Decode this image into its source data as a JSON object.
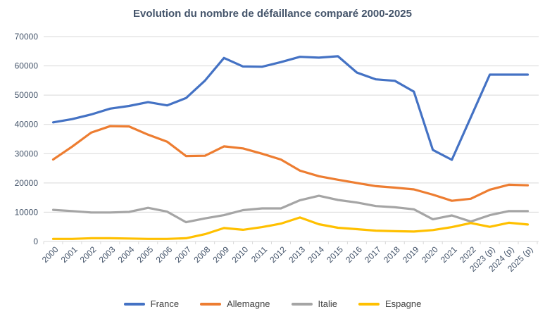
{
  "title": "Evolution du nombre de défaillance comparé 2000-2025",
  "colors": {
    "title_text": "#44546A",
    "axis_text": "#44546A",
    "gridline": "#D9D9D9",
    "legend_text": "#404040"
  },
  "chart_data": {
    "type": "line",
    "title": "Evolution du nombre de défaillance comparé 2000-2025",
    "xlabel": "",
    "ylabel": "",
    "ylim": [
      0,
      70000
    ],
    "y_ticks": [
      0,
      10000,
      20000,
      30000,
      40000,
      50000,
      60000,
      70000
    ],
    "grid": "horizontal",
    "legend_position": "bottom",
    "categories": [
      "2000",
      "2001",
      "2002",
      "2003",
      "2004",
      "2005",
      "2006",
      "2007",
      "2008",
      "2009",
      "2010",
      "2011",
      "2012",
      "2013",
      "2014",
      "2015",
      "2016",
      "2017",
      "2018",
      "2019",
      "2020",
      "2021",
      "2022",
      "2023 (p)",
      "2024 (p)",
      "2025 (p)"
    ],
    "series": [
      {
        "name": "France",
        "color": "#4472C4",
        "values": [
          40700,
          41800,
          43400,
          45400,
          46300,
          47600,
          46500,
          49000,
          55000,
          62700,
          59800,
          59700,
          61300,
          63100,
          62800,
          63300,
          57700,
          55400,
          54900,
          51200,
          31300,
          27900,
          42400,
          57000,
          57000,
          57000
        ]
      },
      {
        "name": "Allemagne",
        "color": "#ED7D31",
        "values": [
          28000,
          32400,
          37200,
          39400,
          39300,
          36500,
          34100,
          29200,
          29300,
          32500,
          31800,
          30000,
          28000,
          24200,
          22300,
          21100,
          20000,
          18900,
          18400,
          17800,
          16000,
          13900,
          14600,
          17700,
          19400,
          19200
        ]
      },
      {
        "name": "Italie",
        "color": "#A5A5A5",
        "values": [
          10800,
          10400,
          9900,
          9900,
          10100,
          11500,
          10200,
          6600,
          7900,
          9000,
          10700,
          11300,
          11300,
          14100,
          15600,
          14200,
          13300,
          12100,
          11700,
          11000,
          7600,
          8900,
          6800,
          9000,
          10400,
          10400
        ]
      },
      {
        "name": "Espagne",
        "color": "#FFC000",
        "values": [
          900,
          900,
          1100,
          1100,
          1000,
          900,
          900,
          1100,
          2500,
          4600,
          4000,
          4900,
          6100,
          8200,
          5900,
          4700,
          4200,
          3700,
          3500,
          3400,
          3900,
          4900,
          6300,
          5000,
          6400,
          5800
        ]
      }
    ]
  }
}
